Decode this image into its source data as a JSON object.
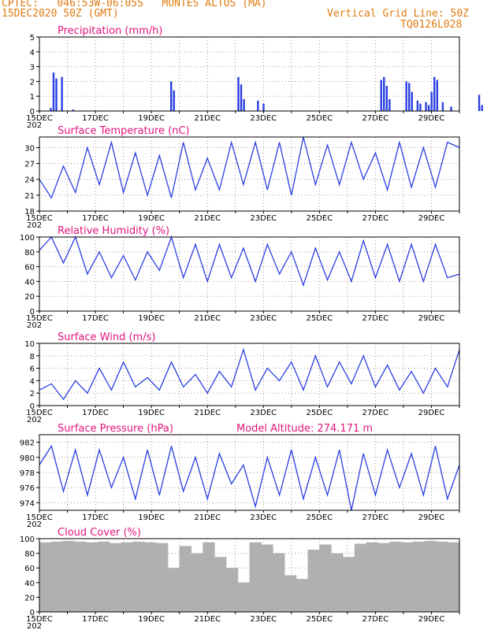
{
  "header": {
    "line1_left": "CPTEC:   046:53W-06:05S   MONTES ALTOS (MA)",
    "line2_left": "15DEC2020 50Z (GMT)",
    "line2_right": "Vertical Grid Line: 50Z",
    "line3_right": "TQ0126L028",
    "model_altitude": "Model Altitude: 274.171 m"
  },
  "colors": {
    "series": "#2a3fe0",
    "header": "#e07a10",
    "title": "#e0147c",
    "cloud": "#b0b0b0",
    "grid": "#9a9a9a"
  },
  "x_axis": {
    "labels": [
      "15DEC",
      "17DEC",
      "19DEC",
      "21DEC",
      "23DEC",
      "25DEC",
      "27DEC",
      "29DEC"
    ],
    "sub_label": "202"
  },
  "chart_data": [
    {
      "type": "bar",
      "title": "Precipitation (mm/h)",
      "ylim": [
        0,
        5
      ],
      "yticks": [
        0,
        1,
        2,
        3,
        4,
        5
      ],
      "bars": [
        [
          0.5,
          2.6
        ],
        [
          0.6,
          2.2
        ],
        [
          0.8,
          2.3
        ],
        [
          0.4,
          0.2
        ],
        [
          1.2,
          0.1
        ],
        [
          4.7,
          2.0
        ],
        [
          4.8,
          1.4
        ],
        [
          7.1,
          2.3
        ],
        [
          7.2,
          1.8
        ],
        [
          7.3,
          0.8
        ],
        [
          7.8,
          0.7
        ],
        [
          8.0,
          0.5
        ],
        [
          12.2,
          2.1
        ],
        [
          12.3,
          2.3
        ],
        [
          12.4,
          1.7
        ],
        [
          12.5,
          0.8
        ],
        [
          13.1,
          2.0
        ],
        [
          13.2,
          1.9
        ],
        [
          13.3,
          1.3
        ],
        [
          13.5,
          0.7
        ],
        [
          13.6,
          0.5
        ],
        [
          13.8,
          0.6
        ],
        [
          13.9,
          0.4
        ],
        [
          14.0,
          1.3
        ],
        [
          14.1,
          2.3
        ],
        [
          14.2,
          2.1
        ],
        [
          14.4,
          0.6
        ],
        [
          14.7,
          0.3
        ],
        [
          15.7,
          1.1
        ],
        [
          15.8,
          0.4
        ]
      ]
    },
    {
      "type": "line",
      "title": "Surface Temperature (nC)",
      "ylim": [
        18,
        32
      ],
      "yticks": [
        18,
        21,
        24,
        27,
        30
      ],
      "values": [
        24,
        20.5,
        26.5,
        21.5,
        30,
        23,
        31,
        21.5,
        29,
        21,
        28.5,
        20.5,
        31,
        22,
        28,
        22,
        31,
        23,
        31,
        22,
        31,
        21,
        32,
        23,
        30.5,
        23,
        31,
        24,
        29,
        22,
        31,
        22.5,
        30,
        22.5,
        31,
        30
      ]
    },
    {
      "type": "line",
      "title": "Relative Humidity (%)",
      "ylim": [
        0,
        100
      ],
      "yticks": [
        0,
        20,
        40,
        60,
        80,
        100
      ],
      "values": [
        82,
        100,
        65,
        100,
        50,
        80,
        45,
        75,
        42,
        80,
        55,
        100,
        45,
        90,
        40,
        90,
        45,
        85,
        40,
        90,
        50,
        80,
        35,
        85,
        42,
        80,
        40,
        95,
        45,
        90,
        40,
        90,
        40,
        90,
        45,
        50
      ]
    },
    {
      "type": "line",
      "title": "Surface Wind (m/s)",
      "ylim": [
        0,
        10
      ],
      "yticks": [
        0,
        2,
        4,
        6,
        8,
        10
      ],
      "values": [
        2.5,
        3.5,
        1,
        4,
        2,
        6,
        2.5,
        7,
        3,
        4.5,
        2.5,
        7,
        3,
        5,
        2,
        5.5,
        3,
        9,
        2.5,
        6,
        4,
        7,
        2.5,
        8,
        3,
        7,
        3.5,
        8,
        3,
        6.5,
        2.5,
        5.5,
        2,
        6,
        3,
        9
      ]
    },
    {
      "type": "line",
      "title": "Surface Pressure (hPa)",
      "ylim": [
        973,
        983
      ],
      "yticks": [
        974,
        976,
        978,
        980,
        982
      ],
      "values": [
        979,
        981.5,
        975.5,
        981,
        975,
        981,
        976,
        980,
        974.5,
        981,
        975,
        981.5,
        975.5,
        980,
        974.5,
        980.5,
        976.5,
        979,
        973.5,
        980,
        975,
        981,
        974.5,
        980,
        975,
        981,
        973,
        980.5,
        975,
        981,
        976,
        980.5,
        975,
        981.5,
        974.5,
        979
      ]
    },
    {
      "type": "area",
      "title": "Cloud Cover (%)",
      "ylim": [
        0,
        100
      ],
      "yticks": [
        0,
        20,
        40,
        60,
        80,
        100
      ],
      "values": [
        95,
        96,
        97,
        96,
        95,
        96,
        94,
        95,
        96,
        95,
        94,
        60,
        90,
        80,
        95,
        75,
        60,
        40,
        95,
        92,
        80,
        50,
        45,
        85,
        92,
        80,
        75,
        93,
        95,
        94,
        96,
        95,
        96,
        97,
        96,
        95
      ]
    }
  ]
}
